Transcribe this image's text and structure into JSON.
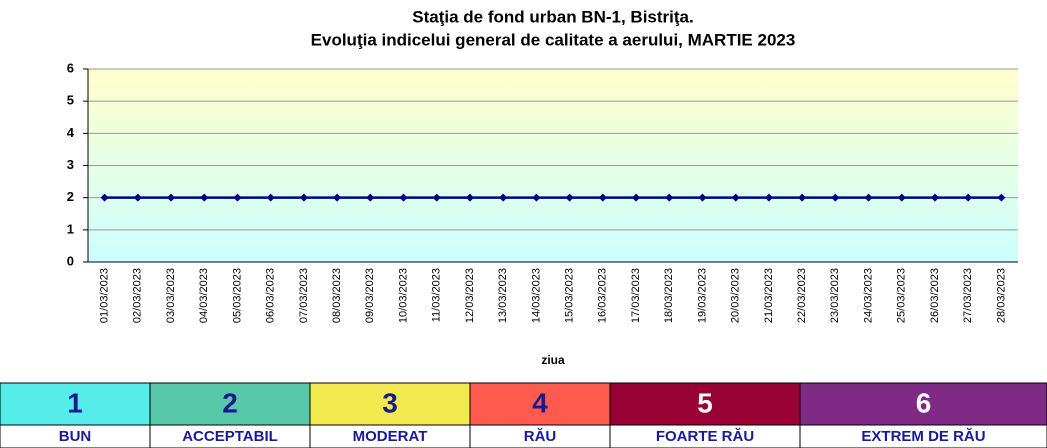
{
  "chart_data": {
    "type": "line",
    "title": [
      "Staţia de fond urban BN-1, Bistriţa.",
      "Evoluţia indicelui general de calitate a aerului, MARTIE 2023"
    ],
    "x_label": "ziua",
    "categories": [
      "01/03/2023",
      "02/03/2023",
      "03/03/2023",
      "04/03/2023",
      "05/03/2023",
      "06/03/2023",
      "07/03/2023",
      "08/03/2023",
      "09/03/2023",
      "10/03/2023",
      "11/03/2023",
      "12/03/2023",
      "13/03/2023",
      "14/03/2023",
      "15/03/2023",
      "16/03/2023",
      "17/03/2023",
      "18/03/2023",
      "19/03/2023",
      "20/03/2023",
      "21/03/2023",
      "22/03/2023",
      "23/03/2023",
      "24/03/2023",
      "25/03/2023",
      "26/03/2023",
      "27/03/2023",
      "28/03/2023"
    ],
    "values": [
      2,
      2,
      2,
      2,
      2,
      2,
      2,
      2,
      2,
      2,
      2,
      2,
      2,
      2,
      2,
      2,
      2,
      2,
      2,
      2,
      2,
      2,
      2,
      2,
      2,
      2,
      2,
      2
    ],
    "color": "#000080",
    "ylim": [
      0,
      6
    ],
    "yticks": [
      0,
      1,
      2,
      3,
      4,
      5,
      6
    ],
    "grid": true
  },
  "legend": [
    {
      "number": 1,
      "label": "BUN",
      "color": "#55ecea"
    },
    {
      "number": 2,
      "label": "ACCEPTABIL",
      "color": "#57c9a9"
    },
    {
      "number": 3,
      "label": "MODERAT",
      "color": "#f2e94e"
    },
    {
      "number": 4,
      "label": "RĂU",
      "color": "#ff5a4e"
    },
    {
      "number": 5,
      "label": "FOARTE RĂU",
      "color": "#990033"
    },
    {
      "number": 6,
      "label": "EXTREM DE RĂU",
      "color": "#7f2a85"
    }
  ]
}
